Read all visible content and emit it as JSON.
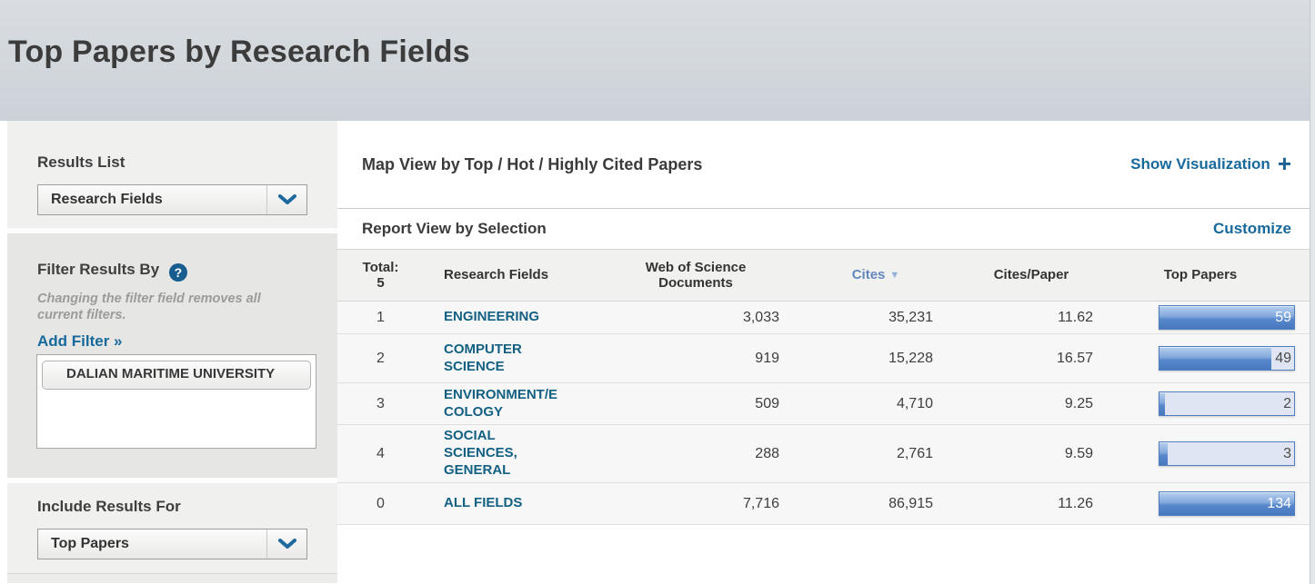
{
  "page": {
    "title": "Top Papers by Research Fields"
  },
  "sidebar": {
    "results_list": {
      "label": "Results List",
      "value": "Research Fields"
    },
    "filter": {
      "heading": "Filter Results By",
      "help_label": "?",
      "note": "Changing the filter field removes all current filters.",
      "add_filter_label": "Add Filter »",
      "filters": [
        "DALIAN MARITIME UNIVERSITY"
      ]
    },
    "include_results": {
      "label": "Include Results For",
      "value": "Top Papers"
    }
  },
  "main": {
    "map_view": {
      "title": "Map View by Top / Hot / Highly Cited Papers",
      "show_visualization_label": "Show Visualization",
      "plus": "+"
    },
    "report_view": {
      "title": "Report View by Selection",
      "customize_label": "Customize"
    },
    "table": {
      "total_label": "Total:",
      "total_count": "5",
      "columns": [
        "Research Fields",
        "Web of Science Documents",
        "Cites",
        "Cites/Paper",
        "Top Papers"
      ],
      "sorted_column": "Cites",
      "sort_arrow": "▼",
      "rows": [
        {
          "rank": "1",
          "field": "ENGINEERING",
          "documents": "3,033",
          "cites": "35,231",
          "cites_per_paper": "11.62",
          "top_papers": "59",
          "bar_pct": 100
        },
        {
          "rank": "2",
          "field": "COMPUTER SCIENCE",
          "documents": "919",
          "cites": "15,228",
          "cites_per_paper": "16.57",
          "top_papers": "49",
          "bar_pct": 83
        },
        {
          "rank": "3",
          "field": "ENVIRONMENT/ECOLOGY",
          "documents": "509",
          "cites": "4,710",
          "cites_per_paper": "9.25",
          "top_papers": "2",
          "bar_pct": 4
        },
        {
          "rank": "4",
          "field": "SOCIAL SCIENCES, GENERAL",
          "documents": "288",
          "cites": "2,761",
          "cites_per_paper": "9.59",
          "top_papers": "3",
          "bar_pct": 6
        },
        {
          "rank": "0",
          "field": "ALL FIELDS",
          "documents": "7,716",
          "cites": "86,915",
          "cites_per_paper": "11.26",
          "top_papers": "134",
          "bar_pct": 100
        }
      ]
    }
  },
  "colors": {
    "link_blue": "#17699c",
    "field_link": "#136083",
    "cites_header": "#6288bd",
    "bar_border": "#4f7fbe",
    "bar_track": "#dfe5f2",
    "band_bg": "#d2d7dc"
  }
}
